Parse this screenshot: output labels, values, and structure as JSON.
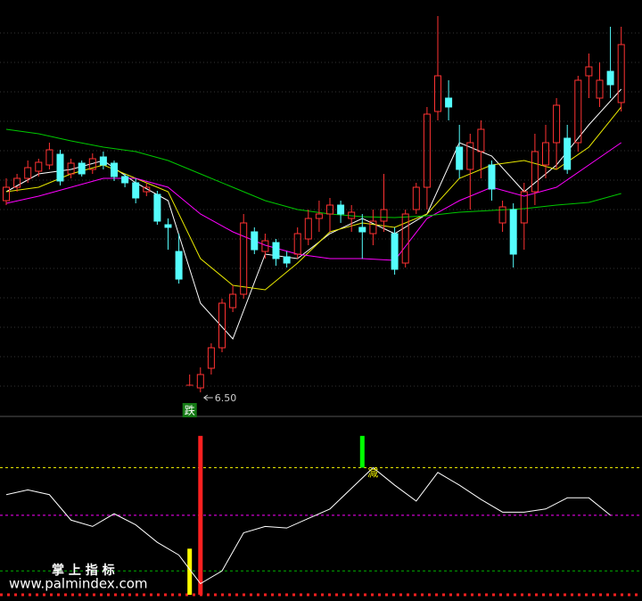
{
  "chart_data": [
    {
      "type": "candlestick",
      "ylim": [
        6.3,
        10.9
      ],
      "up_color": "#ff3232",
      "down_color": "#54fcfc",
      "open": [
        8.65,
        8.8,
        8.9,
        8.98,
        9.05,
        9.17,
        8.95,
        9.07,
        9.0,
        9.14,
        9.07,
        8.92,
        8.85,
        8.75,
        8.72,
        8.38,
        8.08,
        6.58,
        6.55,
        6.77,
        7.0,
        7.45,
        7.6,
        8.3,
        8.08,
        8.18,
        8.02,
        8.05,
        8.22,
        8.45,
        8.5,
        8.6,
        8.45,
        8.35,
        8.28,
        8.42,
        8.28,
        7.95,
        8.55,
        8.8,
        9.65,
        9.8,
        9.25,
        9.0,
        9.2,
        9.05,
        8.4,
        8.55,
        8.4,
        8.75,
        9.05,
        9.3,
        9.35,
        9.3,
        10.05,
        9.8,
        10.1,
        9.75
      ],
      "close": [
        8.8,
        8.9,
        9.02,
        9.08,
        9.22,
        8.87,
        9.07,
        8.95,
        9.12,
        9.05,
        8.92,
        8.85,
        8.68,
        8.8,
        8.42,
        8.35,
        7.77,
        6.58,
        6.7,
        7.0,
        7.5,
        7.6,
        8.4,
        8.1,
        8.2,
        8.0,
        7.95,
        8.28,
        8.45,
        8.5,
        8.6,
        8.5,
        8.52,
        8.3,
        8.42,
        8.55,
        7.88,
        8.5,
        8.8,
        9.62,
        10.05,
        9.7,
        9.0,
        9.3,
        9.45,
        8.78,
        8.58,
        8.05,
        8.75,
        9.2,
        9.3,
        9.72,
        9.0,
        10.0,
        10.15,
        10.0,
        9.95,
        10.4
      ],
      "high": [
        8.9,
        8.95,
        9.1,
        9.12,
        9.3,
        9.22,
        9.12,
        9.1,
        9.18,
        9.2,
        9.1,
        8.95,
        8.9,
        8.85,
        8.76,
        8.45,
        8.28,
        6.7,
        6.78,
        7.05,
        7.55,
        7.7,
        8.5,
        8.35,
        8.28,
        8.22,
        8.08,
        8.35,
        8.55,
        8.65,
        8.68,
        8.65,
        8.6,
        8.5,
        8.55,
        8.95,
        8.35,
        8.55,
        8.85,
        9.7,
        10.72,
        10.0,
        9.5,
        9.4,
        9.55,
        9.1,
        8.65,
        8.62,
        8.85,
        9.4,
        9.5,
        9.8,
        9.5,
        10.05,
        10.3,
        10.2,
        10.6,
        10.6
      ],
      "low": [
        8.6,
        8.75,
        8.85,
        8.92,
        9.0,
        8.82,
        8.9,
        8.92,
        8.95,
        9.0,
        8.87,
        8.8,
        8.62,
        8.7,
        8.38,
        8.1,
        7.72,
        6.58,
        6.5,
        6.7,
        6.95,
        7.4,
        7.55,
        8.05,
        8.0,
        7.92,
        7.9,
        8.0,
        8.15,
        8.3,
        8.3,
        8.4,
        8.3,
        8.0,
        8.15,
        8.3,
        7.82,
        7.9,
        8.5,
        8.55,
        9.55,
        9.55,
        8.9,
        8.55,
        8.9,
        8.65,
        8.3,
        7.9,
        8.1,
        8.6,
        8.9,
        9.0,
        8.95,
        9.2,
        9.8,
        9.7,
        9.8,
        9.65
      ],
      "ma_x": [
        0,
        3,
        6,
        9,
        12,
        15,
        18,
        21,
        24,
        27,
        30,
        33,
        36,
        39,
        42,
        45,
        48,
        51,
        54,
        57
      ],
      "lines": [
        {
          "color": "#ffffff",
          "values": [
            8.75,
            8.95,
            9.0,
            9.1,
            8.85,
            8.65,
            7.5,
            7.1,
            8.05,
            8.0,
            8.28,
            8.45,
            8.28,
            8.5,
            9.3,
            9.15,
            8.75,
            9.05,
            9.5,
            9.9
          ]
        },
        {
          "color": "#e8e800",
          "values": [
            8.75,
            8.8,
            8.95,
            9.05,
            8.9,
            8.75,
            8.0,
            7.7,
            7.65,
            7.95,
            8.3,
            8.4,
            8.35,
            8.5,
            8.9,
            9.05,
            9.1,
            9.0,
            9.25,
            9.7
          ]
        },
        {
          "color": "#ff00ff",
          "values": [
            8.62,
            8.7,
            8.8,
            8.9,
            8.9,
            8.8,
            8.5,
            8.3,
            8.15,
            8.05,
            8.0,
            8.0,
            7.98,
            8.45,
            8.65,
            8.8,
            8.7,
            8.8,
            9.05,
            9.3
          ]
        },
        {
          "color": "#00c800",
          "values": [
            9.45,
            9.4,
            9.32,
            9.25,
            9.2,
            9.1,
            8.95,
            8.8,
            8.65,
            8.55,
            8.5,
            8.47,
            8.46,
            8.48,
            8.52,
            8.54,
            8.56,
            8.6,
            8.63,
            8.73
          ]
        }
      ],
      "low_label": {
        "text": "6.50",
        "x": 18
      },
      "signal_label": {
        "text": "跌",
        "x": 17
      }
    },
    {
      "type": "line",
      "ylim": [
        0,
        110
      ],
      "x": [
        0,
        2,
        4,
        6,
        8,
        10,
        12,
        14,
        16,
        18,
        20,
        22,
        24,
        26,
        28,
        30,
        32,
        34,
        36,
        38,
        40,
        42,
        44,
        46,
        48,
        50,
        52,
        54,
        56
      ],
      "values": [
        63,
        66,
        63,
        47,
        43,
        51,
        44,
        33,
        25,
        7,
        15,
        39,
        43,
        42,
        48,
        54,
        67,
        80,
        69,
        59,
        77,
        69,
        60,
        52,
        52,
        54,
        61,
        61,
        50
      ],
      "color": "#ffffff",
      "levels": [
        {
          "value": 80,
          "color": "#e8e800"
        },
        {
          "value": 50,
          "color": "#ff00ff"
        },
        {
          "value": 15,
          "color": "#00b000"
        },
        {
          "value": 0,
          "color": "#ff2020"
        }
      ],
      "bars": [
        {
          "x": 17,
          "from": 0,
          "to": 29,
          "color": "#ffff00"
        },
        {
          "x": 18,
          "from": 0,
          "to": 100,
          "color": "#ff2020"
        },
        {
          "x": 33,
          "from": 80,
          "to": 100,
          "color": "#00ff00"
        }
      ],
      "signal_label": {
        "text": "减",
        "x": 33
      }
    }
  ],
  "watermark": {
    "title": "掌 上 指 标",
    "url": "www.palmindex.com"
  }
}
